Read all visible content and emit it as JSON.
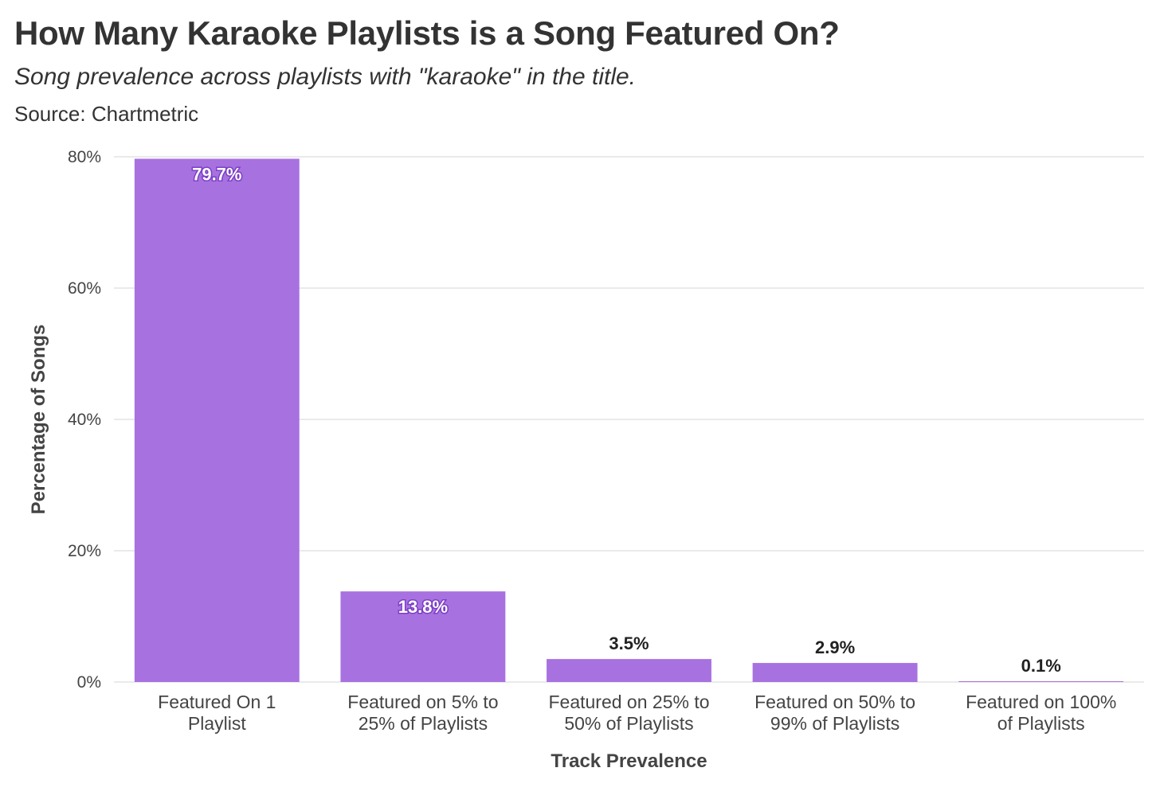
{
  "chart_data": {
    "type": "bar",
    "title": "How Many Karaoke Playlists is a Song Featured On?",
    "subtitle": "Song prevalence across playlists with \"karaoke\" in the title.",
    "source": "Source: Chartmetric",
    "xlabel": "Track Prevalence",
    "ylabel": "Percentage of Songs",
    "categories": [
      "Featured On 1 Playlist",
      "Featured on 5% to 25% of Playlists",
      "Featured on 25% to 50% of Playlists",
      "Featured on 50% to 99% of Playlists",
      "Featured on 100% of Playlists"
    ],
    "category_label_lines": [
      [
        "Featured On 1",
        "Playlist"
      ],
      [
        "Featured on 5% to",
        "25% of Playlists"
      ],
      [
        "Featured on 25% to",
        "50% of Playlists"
      ],
      [
        "Featured on 50% to",
        "99% of Playlists"
      ],
      [
        "Featured on 100%",
        "of Playlists"
      ]
    ],
    "values": [
      79.7,
      13.8,
      3.5,
      2.9,
      0.1
    ],
    "data_labels": [
      "79.7%",
      "13.8%",
      "3.5%",
      "2.9%",
      "0.1%"
    ],
    "ylim": [
      0,
      80
    ],
    "yticks": [
      0,
      20,
      40,
      60,
      80
    ],
    "ytick_labels": [
      "0%",
      "20%",
      "40%",
      "60%",
      "80%"
    ],
    "grid": true,
    "legend": "none",
    "bar_color": "#a871e0",
    "label_outline_color": "#7b3fc6"
  }
}
